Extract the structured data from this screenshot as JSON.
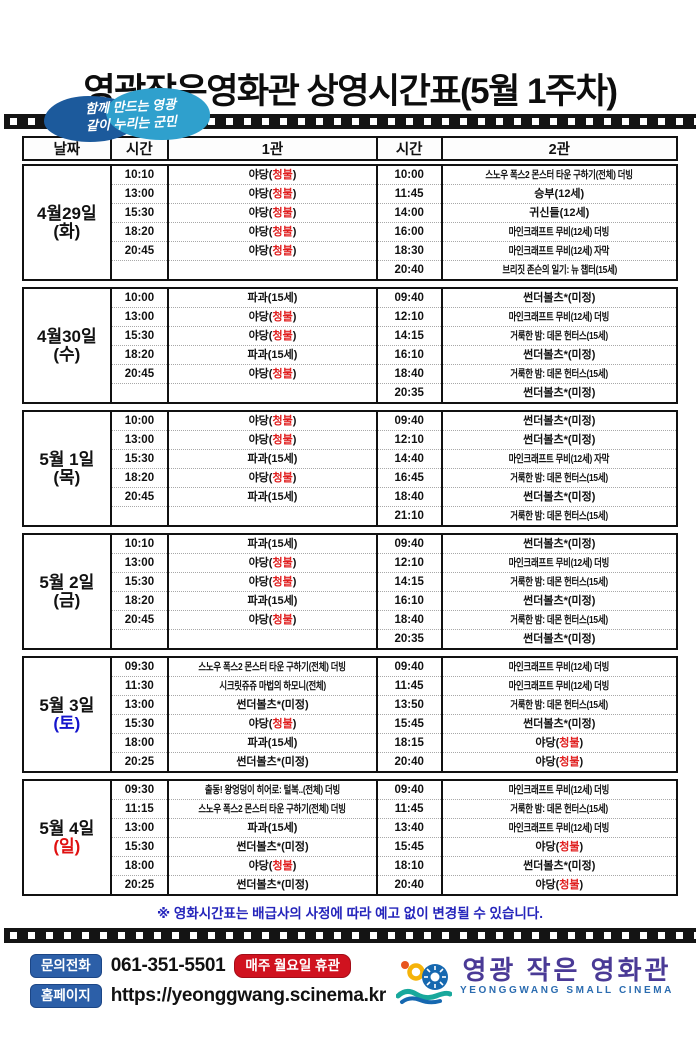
{
  "gov_logo": {
    "line1": "함께 만드는 영광",
    "line2": "같이 누리는 군민"
  },
  "header": {
    "title": "영광작은영화관  상영시간표(5월 1주차)"
  },
  "table": {
    "headers": [
      "날짜",
      "시간",
      "1관",
      "시간",
      "2관"
    ]
  },
  "schedule": {
    "blocks": [
      {
        "date": "4월29일",
        "day": "(화)",
        "day_color": "#111111",
        "rows": [
          [
            "10:10",
            "야당(청불)",
            "10:00",
            "스노우 폭스2 몬스터 타운 구하기(전체) 더빙"
          ],
          [
            "13:00",
            "야당(청불)",
            "11:45",
            "승부(12세)"
          ],
          [
            "15:30",
            "야당(청불)",
            "14:00",
            "귀신들(12세)"
          ],
          [
            "18:20",
            "야당(청불)",
            "16:00",
            "마인크래프트 무비(12세) 더빙"
          ],
          [
            "20:45",
            "야당(청불)",
            "18:30",
            "마인크래프트 무비(12세) 자막"
          ],
          [
            "",
            "",
            "20:40",
            "브리짓 존슨의 일기: 뉴 챕터(15세)"
          ]
        ]
      },
      {
        "date": "4월30일",
        "day": "(수)",
        "day_color": "#111111",
        "rows": [
          [
            "10:00",
            "파과(15세)",
            "09:40",
            "썬더볼츠*(미정)"
          ],
          [
            "13:00",
            "야당(청불)",
            "12:10",
            "마인크래프트 무비(12세) 더빙"
          ],
          [
            "15:30",
            "야당(청불)",
            "14:15",
            "거룩한 밤: 데몬 헌터스(15세)"
          ],
          [
            "18:20",
            "파과(15세)",
            "16:10",
            "썬더볼츠*(미정)"
          ],
          [
            "20:45",
            "야당(청불)",
            "18:40",
            "거룩한 밤: 데몬 헌터스(15세)"
          ],
          [
            "",
            "",
            "20:35",
            "썬더볼츠*(미정)"
          ]
        ]
      },
      {
        "date": "5월 1일",
        "day": "(목)",
        "day_color": "#111111",
        "rows": [
          [
            "10:00",
            "야당(청불)",
            "09:40",
            "썬더볼츠*(미정)"
          ],
          [
            "13:00",
            "야당(청불)",
            "12:10",
            "썬더볼츠*(미정)"
          ],
          [
            "15:30",
            "파과(15세)",
            "14:40",
            "마인크래프트 무비(12세) 자막"
          ],
          [
            "18:20",
            "야당(청불)",
            "16:45",
            "거룩한 밤: 데몬 헌터스(15세)"
          ],
          [
            "20:45",
            "파과(15세)",
            "18:40",
            "썬더볼츠*(미정)"
          ],
          [
            "",
            "",
            "21:10",
            "거룩한 밤: 데몬 헌터스(15세)"
          ]
        ]
      },
      {
        "date": "5월 2일",
        "day": "(금)",
        "day_color": "#111111",
        "rows": [
          [
            "10:10",
            "파과(15세)",
            "09:40",
            "썬더볼츠*(미정)"
          ],
          [
            "13:00",
            "야당(청불)",
            "12:10",
            "마인크래프트 무비(12세) 더빙"
          ],
          [
            "15:30",
            "야당(청불)",
            "14:15",
            "거룩한 밤: 데몬 헌터스(15세)"
          ],
          [
            "18:20",
            "파과(15세)",
            "16:10",
            "썬더볼츠*(미정)"
          ],
          [
            "20:45",
            "야당(청불)",
            "18:40",
            "거룩한 밤: 데몬 헌터스(15세)"
          ],
          [
            "",
            "",
            "20:35",
            "썬더볼츠*(미정)"
          ]
        ]
      },
      {
        "date": "5월 3일",
        "day": "(토)",
        "day_color": "#1515cc",
        "rows": [
          [
            "09:30",
            "스노우 폭스2 몬스터 타운 구하기(전체) 더빙",
            "09:40",
            "마인크래프트 무비(12세) 더빙"
          ],
          [
            "11:30",
            "시크릿쥬쥬 마법의 하모니(전체)",
            "11:45",
            "마인크래프트 무비(12세) 더빙"
          ],
          [
            "13:00",
            "썬더볼츠*(미정)",
            "13:50",
            "거룩한 밤: 데몬 헌터스(15세)"
          ],
          [
            "15:30",
            "야당(청불)",
            "15:45",
            "썬더볼츠*(미정)"
          ],
          [
            "18:00",
            "파과(15세)",
            "18:15",
            "야당(청불)"
          ],
          [
            "20:25",
            "썬더볼츠*(미정)",
            "20:40",
            "야당(청불)"
          ]
        ]
      },
      {
        "date": "5월 4일",
        "day": "(일)",
        "day_color": "#e01010",
        "rows": [
          [
            "09:30",
            "출동! 왕엉덩이 히어로: 털복..(전체) 더빙",
            "09:40",
            "마인크래프트 무비(12세) 더빙"
          ],
          [
            "11:15",
            "스노우 폭스2 몬스터 타운 구하기(전체) 더빙",
            "11:45",
            "거룩한 밤: 데몬 헌터스(15세)"
          ],
          [
            "13:00",
            "파과(15세)",
            "13:40",
            "마인크래프트 무비(12세) 더빙"
          ],
          [
            "15:30",
            "썬더볼츠*(미정)",
            "15:45",
            "야당(청불)"
          ],
          [
            "18:00",
            "야당(청불)",
            "18:10",
            "썬더볼츠*(미정)"
          ],
          [
            "20:25",
            "썬더볼츠*(미정)",
            "20:40",
            "야당(청불)"
          ]
        ]
      }
    ]
  },
  "footnote": "※ 영화시간표는 배급사의 사정에 따라 예고 없이 변경될 수 있습니다.",
  "footer": {
    "phone_label": "문의전화",
    "phone_number": "061-351-5501",
    "closed_badge": "매주 월요일 휴관",
    "homepage_label": "홈페이지",
    "homepage_url": "https://yeonggwang.scinema.kr",
    "logo_korean": "영광 작은 영화관",
    "logo_english": "YEONGGWANG SMALL CINEMA"
  },
  "colors": {
    "rating_red": "#e02020",
    "day_blue": "#1515cc",
    "day_red": "#e01010",
    "footnote_blue": "#2424bb",
    "button_blue": "#2c5fa8",
    "badge_red": "#d0121f",
    "logo_purple": "#4a3a96",
    "logo_blue": "#2b6cb0"
  }
}
